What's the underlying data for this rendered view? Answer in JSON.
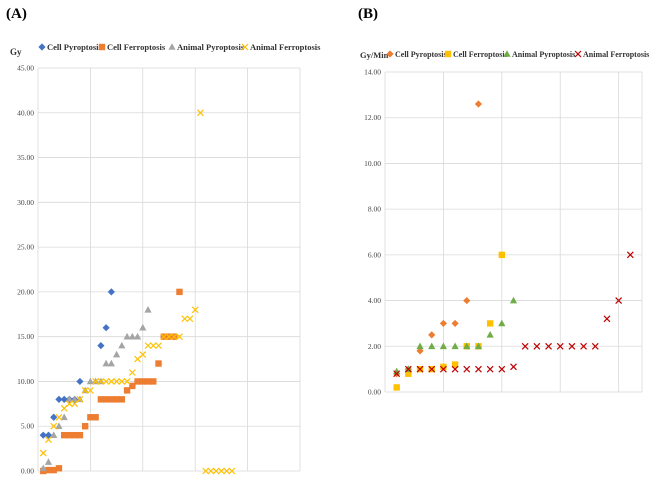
{
  "panels": [
    {
      "id": "a",
      "label": "(A)",
      "unit": "Gy",
      "legend_labels": [
        "Cell Pyroptosis",
        "Cell Ferroptosis",
        "Animal Pyroptosis",
        "Animal Ferroptosis"
      ]
    },
    {
      "id": "b",
      "label": "(B)",
      "unit": "Gy/Min",
      "legend_labels": [
        "Cell Pyroptosis",
        "Cell Ferroptosis",
        "Animal Pyroptosis",
        "Animal Ferroptosis"
      ]
    }
  ],
  "chart_data": [
    {
      "type": "scatter",
      "title": "(A)",
      "ylabel": "Gy",
      "xlabel": "",
      "ylim": [
        0,
        45
      ],
      "yticks": [
        0,
        5,
        10,
        15,
        20,
        25,
        30,
        35,
        40,
        45
      ],
      "tick_decimals": 2,
      "xlim": [
        0,
        50
      ],
      "xgrid": [
        10,
        20,
        30,
        40
      ],
      "series": [
        {
          "name": "Cell Pyroptosis",
          "color": "#4472C4",
          "marker": "diamond",
          "x": [
            1,
            2,
            3,
            4,
            5,
            6,
            7,
            8,
            12,
            13,
            14
          ],
          "y": [
            4,
            4,
            6,
            8,
            8,
            8,
            8,
            10,
            14,
            16,
            20
          ]
        },
        {
          "name": "Cell Ferroptosis",
          "color": "#ED7D31",
          "marker": "square",
          "x": [
            1,
            2,
            3,
            4,
            5,
            6,
            7,
            8,
            9,
            10,
            11,
            12,
            13,
            14,
            15,
            16,
            17,
            18,
            19,
            20,
            21,
            22,
            23,
            24,
            25,
            26,
            27
          ],
          "y": [
            0,
            0.1,
            0.1,
            0.3,
            4,
            4,
            4,
            4,
            5,
            6,
            6,
            8,
            8,
            8,
            8,
            8,
            9,
            9.5,
            10,
            10,
            10,
            10,
            12,
            15,
            15,
            15,
            20
          ]
        },
        {
          "name": "Animal Pyroptosis",
          "color": "#A5A5A5",
          "marker": "triangle",
          "x": [
            1,
            2,
            3,
            4,
            5,
            6,
            7,
            8,
            9,
            10,
            11,
            12,
            13,
            14,
            15,
            16,
            17,
            18,
            19,
            20,
            21
          ],
          "y": [
            0.3,
            1,
            4,
            5,
            6,
            8,
            8,
            8,
            9,
            10,
            10,
            10,
            12,
            12,
            13,
            14,
            15,
            15,
            15,
            16,
            18
          ]
        },
        {
          "name": "Animal Ferroptosis",
          "color": "#FFC000",
          "marker": "x",
          "x": [
            1,
            2,
            3,
            4,
            5,
            6,
            7,
            8,
            9,
            10,
            11,
            12,
            13,
            14,
            15,
            16,
            17,
            18,
            19,
            20,
            21,
            22,
            23,
            24,
            25,
            26,
            27,
            28,
            29,
            30,
            31,
            32,
            33,
            34,
            35,
            36,
            37
          ],
          "y": [
            2,
            3.5,
            5,
            6,
            7,
            7.5,
            7.5,
            8,
            9,
            9,
            10,
            10,
            10,
            10,
            10,
            10,
            10,
            11,
            12.5,
            13,
            14,
            14,
            14,
            15,
            15,
            15,
            15,
            17,
            17,
            18,
            40,
            0,
            0,
            0,
            0,
            0,
            0
          ]
        }
      ]
    },
    {
      "type": "scatter",
      "title": "(B)",
      "ylabel": "Gy/Min",
      "xlabel": "",
      "ylim": [
        0,
        14
      ],
      "yticks": [
        0,
        2,
        4,
        6,
        8,
        10,
        12,
        14
      ],
      "tick_decimals": 2,
      "xlim": [
        0,
        22
      ],
      "xgrid": [
        5,
        10,
        15,
        20
      ],
      "series": [
        {
          "name": "Cell Pyroptosis",
          "color": "#ED7D31",
          "marker": "diamond",
          "x": [
            1,
            2,
            3,
            4,
            5,
            6,
            7,
            8
          ],
          "y": [
            0.8,
            1,
            1.8,
            2.5,
            3,
            3,
            4,
            12.6
          ]
        },
        {
          "name": "Cell Ferroptosis",
          "color": "#FFC000",
          "marker": "square",
          "x": [
            1,
            2,
            3,
            4,
            5,
            6,
            7,
            8,
            9,
            10
          ],
          "y": [
            0.2,
            0.8,
            1,
            1,
            1.1,
            1.2,
            2,
            2,
            3,
            6
          ]
        },
        {
          "name": "Animal Pyroptosis",
          "color": "#70AD47",
          "marker": "triangle",
          "x": [
            1,
            2,
            3,
            4,
            5,
            6,
            7,
            8,
            9,
            10,
            11
          ],
          "y": [
            0.9,
            1,
            2,
            2,
            2,
            2,
            2,
            2,
            2.5,
            3,
            4
          ]
        },
        {
          "name": "Animal Ferroptosis",
          "color": "#C00000",
          "marker": "x",
          "x": [
            1,
            2,
            3,
            4,
            5,
            6,
            7,
            8,
            9,
            10,
            11,
            12,
            13,
            14,
            15,
            16,
            17,
            18,
            19,
            20,
            21
          ],
          "y": [
            0.8,
            1,
            1,
            1,
            1,
            1,
            1,
            1,
            1,
            1,
            1.1,
            2,
            2,
            2,
            2,
            2,
            2,
            2,
            3.2,
            4,
            6
          ]
        }
      ]
    }
  ]
}
